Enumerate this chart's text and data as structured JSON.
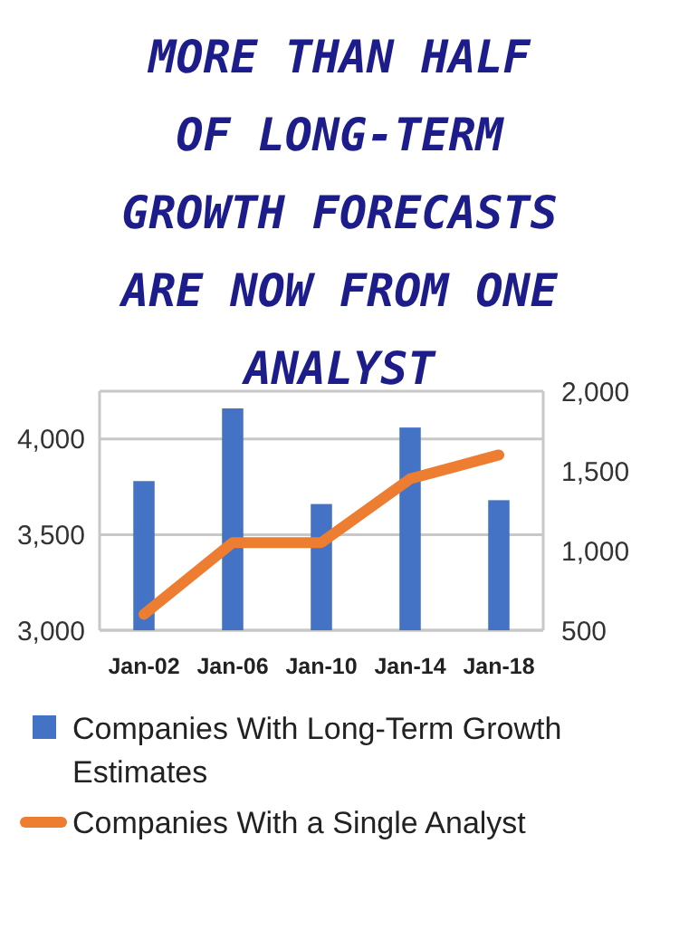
{
  "chart_data": {
    "type": "bar",
    "title": "MORE THAN HALF OF LONG-TERM GROWTH FORECASTS ARE NOW FROM ONE ANALYST",
    "categories": [
      "Jan-02",
      "Jan-06",
      "Jan-10",
      "Jan-14",
      "Jan-18"
    ],
    "series": [
      {
        "name": "Companies With Long-Term Growth Estimates",
        "color": "#4472c4",
        "values": [
          3780,
          4160,
          3660,
          4060,
          3680
        ]
      },
      {
        "name": "Companies With a Single Analyst",
        "type": "line",
        "axis": "y2",
        "color": "#ed7d31",
        "values": [
          600,
          1050,
          1050,
          1450,
          1600
        ]
      }
    ],
    "ylim": [
      3000,
      4250
    ],
    "yticks": [
      {
        "value": 3000,
        "label": "3,000"
      },
      {
        "value": 3500,
        "label": "3,500"
      },
      {
        "value": 4000,
        "label": "4,000"
      }
    ],
    "y2lim": [
      500,
      2000
    ],
    "y2ticks": [
      {
        "value": 500,
        "label": "500"
      },
      {
        "value": 1000,
        "label": "1,000"
      },
      {
        "value": 1500,
        "label": "1,500"
      },
      {
        "value": 2000,
        "label": "2,000"
      }
    ],
    "grid": "y",
    "legend": "bottom",
    "marker": "none",
    "line_style": "solid"
  }
}
